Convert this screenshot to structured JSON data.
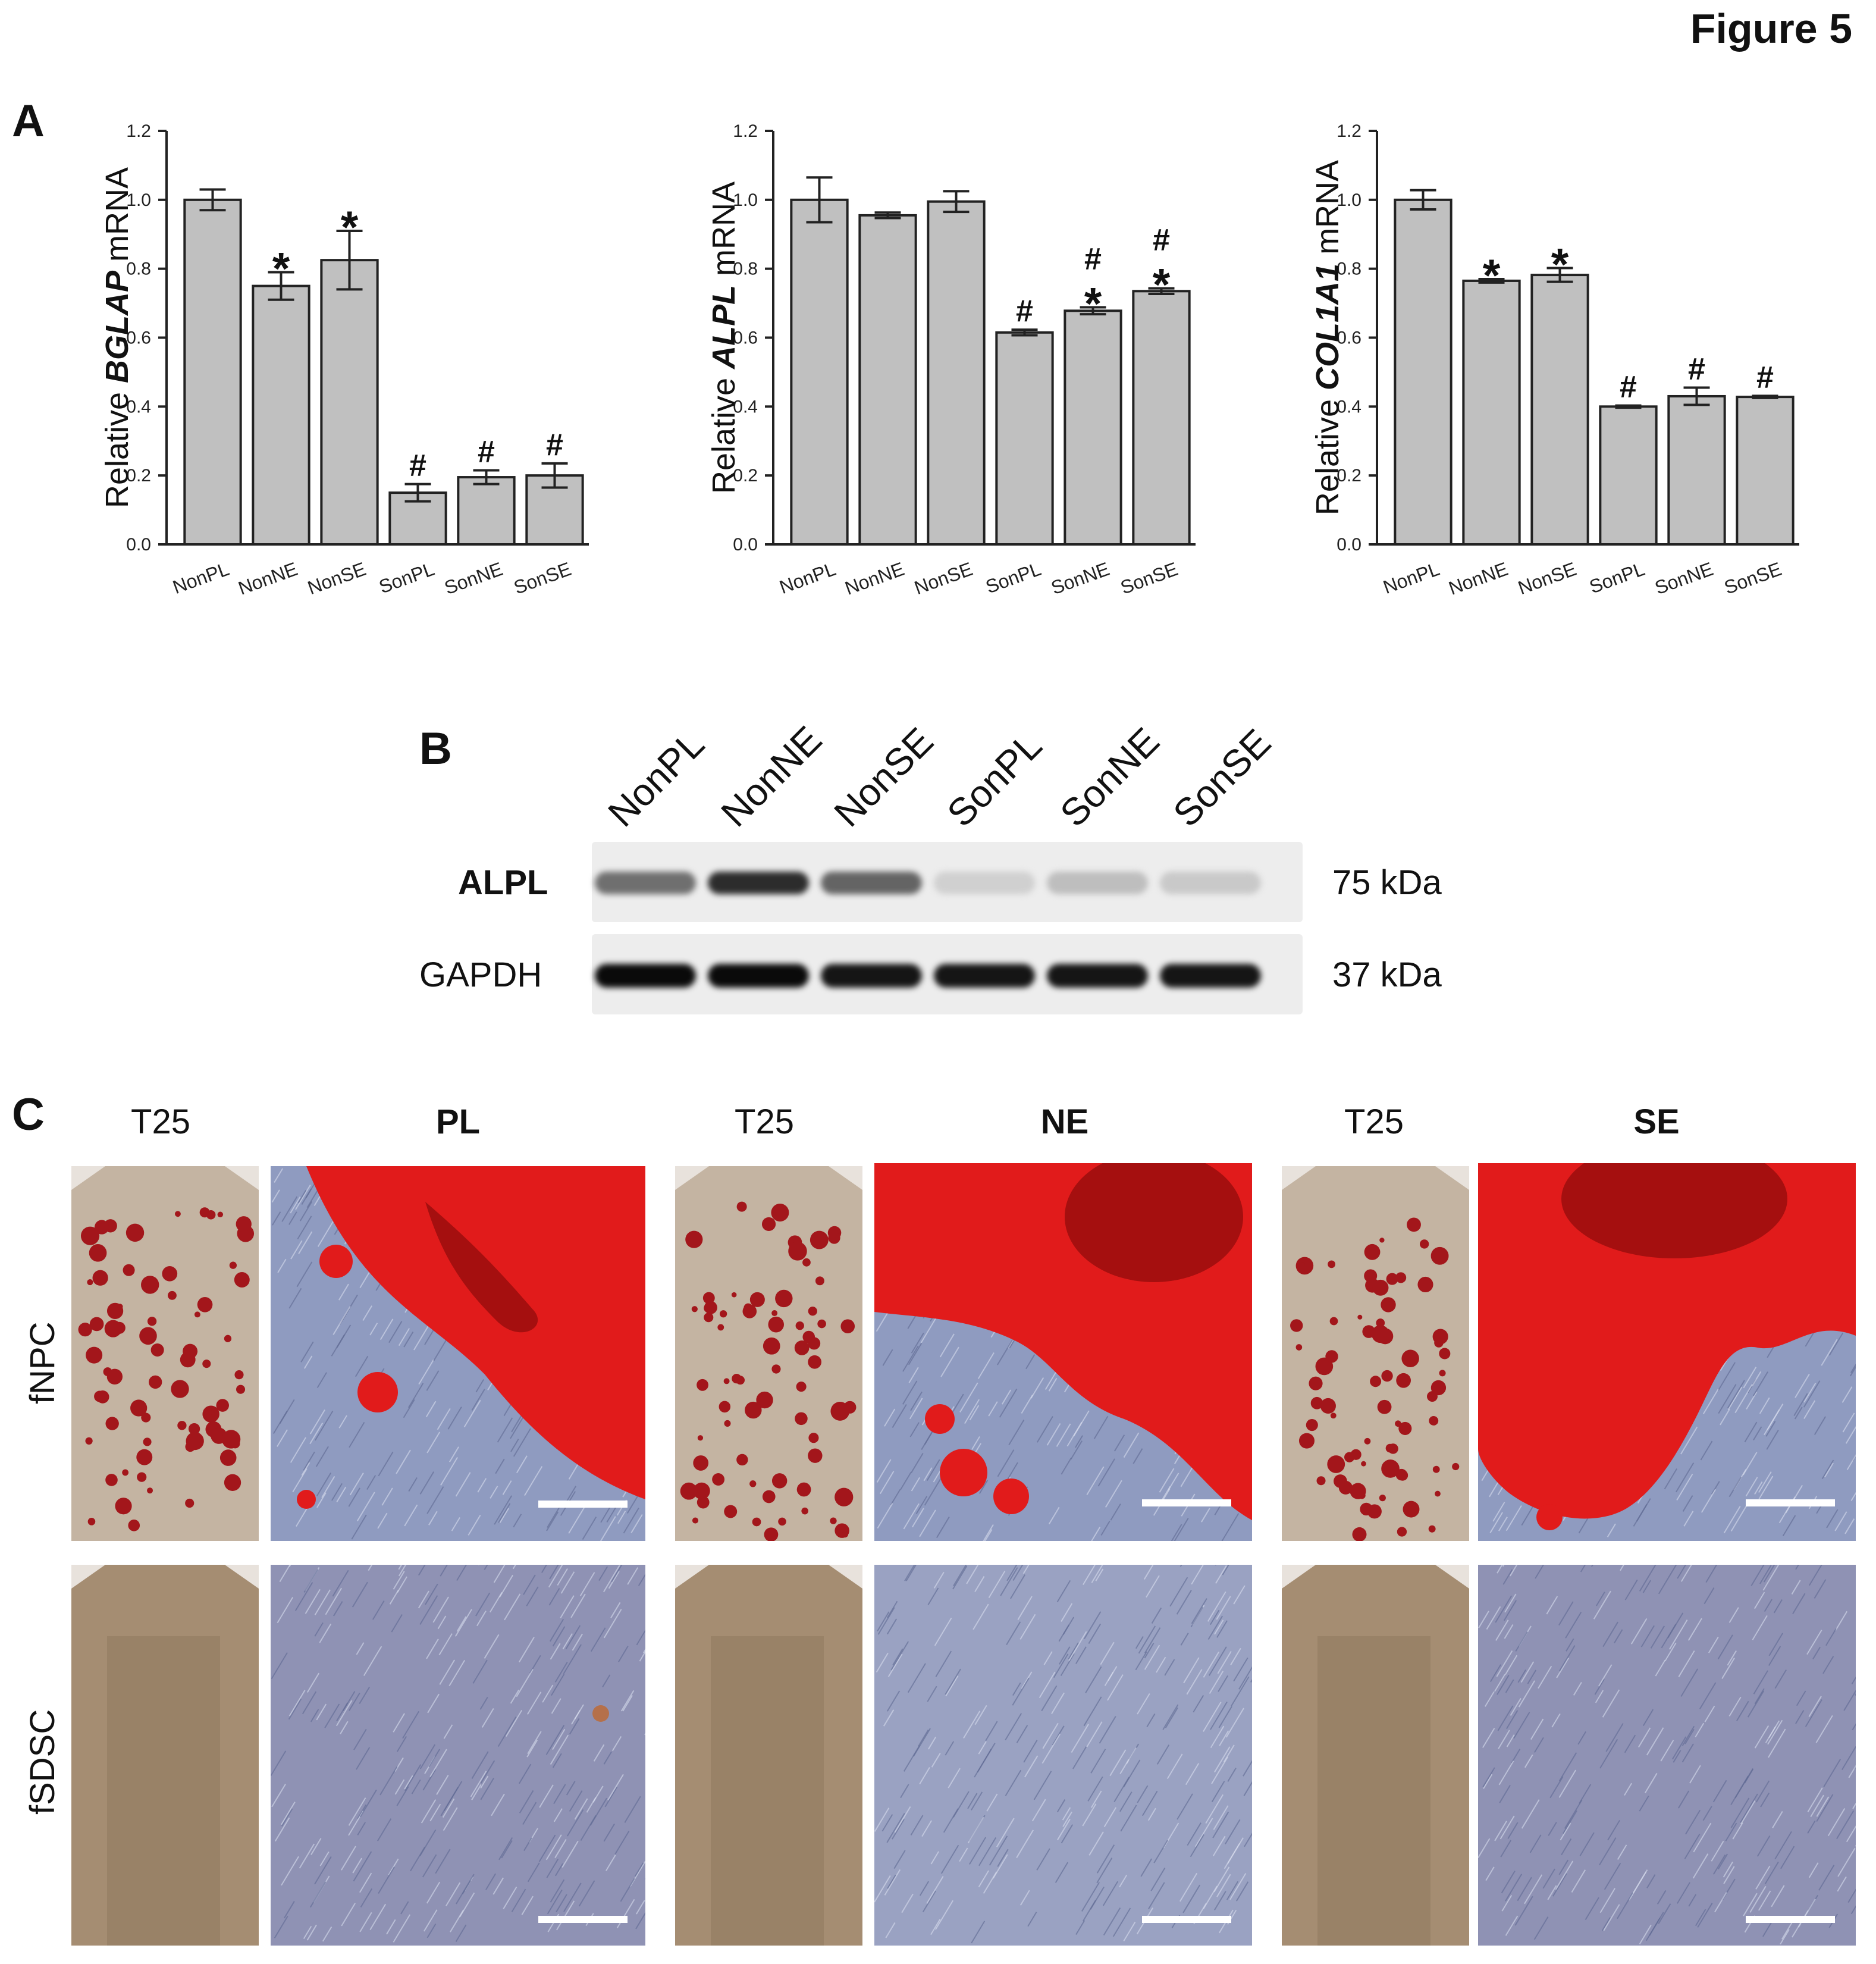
{
  "figure_title": "Figure 5",
  "panel_letters": {
    "a": "A",
    "b": "B",
    "c": "C"
  },
  "chart_data": [
    {
      "type": "bar",
      "categories": [
        "NonPL",
        "NonNE",
        "NonSE",
        "SonPL",
        "SonNE",
        "SonSE"
      ],
      "values": [
        1.0,
        0.75,
        0.825,
        0.15,
        0.195,
        0.2
      ],
      "errors": [
        0.03,
        0.04,
        0.085,
        0.025,
        0.02,
        0.035
      ],
      "annotations": [
        "",
        "*",
        "*",
        "#",
        "#",
        "#"
      ],
      "ylabel_prefix": "Relative ",
      "ylabel_gene": "BGLAP",
      "ylabel_suffix": " mRNA",
      "ylim": [
        0,
        1.2
      ],
      "yticks": [
        "0.0",
        "0.2",
        "0.4",
        "0.6",
        "0.8",
        "1.0",
        "1.2"
      ],
      "bar_color": "#c0c0c0"
    },
    {
      "type": "bar",
      "categories": [
        "NonPL",
        "NonNE",
        "NonSE",
        "SonPL",
        "SonNE",
        "SonSE"
      ],
      "values": [
        1.0,
        0.955,
        0.995,
        0.615,
        0.678,
        0.735
      ],
      "errors": [
        0.065,
        0.008,
        0.03,
        0.008,
        0.01,
        0.008
      ],
      "annotations": [
        "",
        "",
        "",
        "#",
        "#\n*",
        "#\n*"
      ],
      "ylabel_prefix": "Relative ",
      "ylabel_gene": "ALPL",
      "ylabel_suffix": " mRNA",
      "ylim": [
        0,
        1.2
      ],
      "yticks": [
        "0.0",
        "0.2",
        "0.4",
        "0.6",
        "0.8",
        "1.0",
        "1.2"
      ],
      "bar_color": "#c0c0c0"
    },
    {
      "type": "bar",
      "categories": [
        "NonPL",
        "NonNE",
        "NonSE",
        "SonPL",
        "SonNE",
        "SonSE"
      ],
      "values": [
        1.0,
        0.765,
        0.782,
        0.4,
        0.43,
        0.428
      ],
      "errors": [
        0.028,
        0.005,
        0.02,
        0.003,
        0.025,
        0.003
      ],
      "annotations": [
        "",
        "*",
        "*",
        "#",
        "#",
        "#"
      ],
      "ylabel_prefix": "Relative ",
      "ylabel_gene": "COL1A1",
      "ylabel_suffix": " mRNA",
      "ylim": [
        0,
        1.2
      ],
      "yticks": [
        "0.0",
        "0.2",
        "0.4",
        "0.6",
        "0.8",
        "1.0",
        "1.2"
      ],
      "bar_color": "#c0c0c0"
    }
  ],
  "blot": {
    "lanes": [
      "NonPL",
      "NonNE",
      "NonSE",
      "SonPL",
      "SonNE",
      "SonSE"
    ],
    "rows": [
      {
        "protein": "ALPL",
        "size": "75 kDa",
        "band_intensity": [
          0.55,
          0.85,
          0.6,
          0.12,
          0.2,
          0.15
        ]
      },
      {
        "protein": "GAPDH",
        "size": "37 kDa",
        "band_intensity": [
          1.0,
          1.0,
          0.95,
          0.95,
          0.95,
          0.95
        ]
      }
    ]
  },
  "staining": {
    "column_headers": [
      "T25",
      "PL",
      "T25",
      "NE",
      "T25",
      "SE"
    ],
    "row_labels": [
      "fNPC",
      "fSDSC"
    ],
    "colors": {
      "flask_bg": "#b9a58f",
      "red_stain": "#e01818",
      "cells_bg": "#8d97b8",
      "fsdsc_flask": "#a58d72"
    }
  }
}
